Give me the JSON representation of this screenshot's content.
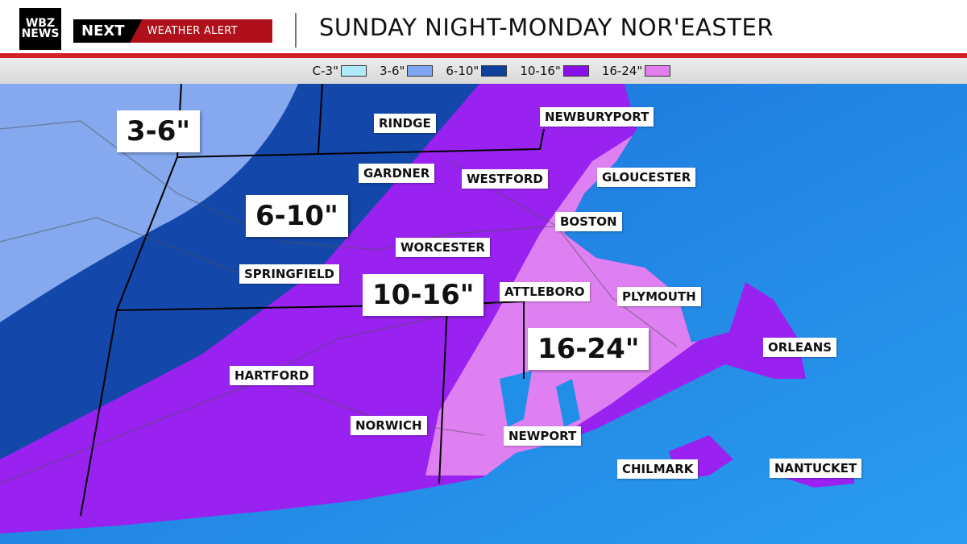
{
  "header": {
    "logo": [
      "WBZ",
      "NEWS"
    ],
    "next": "NEXT",
    "alert": "WEATHER ALERT",
    "title": "SUNDAY NIGHT-MONDAY NOR'EASTER"
  },
  "legend": [
    {
      "label": "C-3\"",
      "color": "#aeeaf8"
    },
    {
      "label": "3-6\"",
      "color": "#7fa6f2"
    },
    {
      "label": "6-10\"",
      "color": "#0f3f9e"
    },
    {
      "label": "10-16\"",
      "color": "#8a10ee"
    },
    {
      "label": "16-24\"",
      "color": "#e27ef0"
    }
  ],
  "colors": {
    "ocean": "#1f8fe8",
    "land_base": "#9a22f0"
  },
  "amounts": [
    "3-6\"",
    "6-10\"",
    "10-16\"",
    "16-24\""
  ],
  "cities": [
    "RINDGE",
    "NEWBURYPORT",
    "GARDNER",
    "WESTFORD",
    "GLOUCESTER",
    "BOSTON",
    "WORCESTER",
    "SPRINGFIELD",
    "ATTLEBORO",
    "PLYMOUTH",
    "HARTFORD",
    "ORLEANS",
    "NORWICH",
    "NEWPORT",
    "CHILMARK",
    "NANTUCKET"
  ]
}
